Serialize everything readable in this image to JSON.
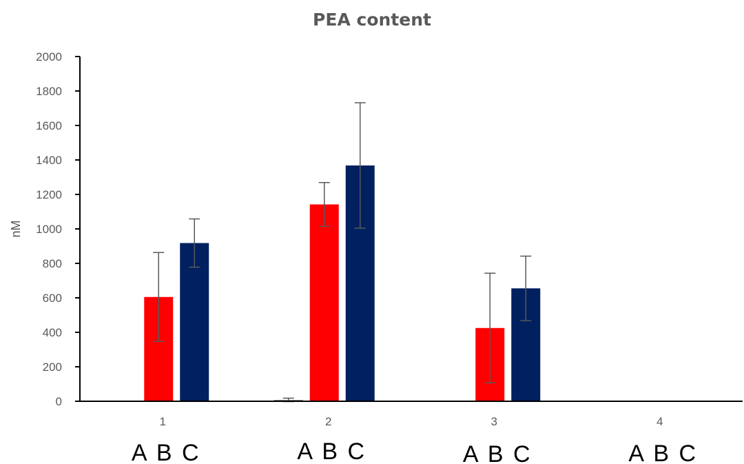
{
  "chart_data": {
    "type": "bar",
    "title": "PEA content",
    "xlabel": "",
    "ylabel": "nM",
    "ylim": [
      0,
      2000
    ],
    "y_ticks": [
      0,
      200,
      400,
      600,
      800,
      1000,
      1200,
      1400,
      1600,
      1800,
      2000
    ],
    "categories": [
      "1",
      "2",
      "3",
      "4"
    ],
    "group_labels": [
      "A",
      "B",
      "C"
    ],
    "series": [
      {
        "id": "A",
        "color": "#7f7f7f",
        "values": [
          2,
          8,
          2,
          0
        ],
        "errors": [
          0,
          10,
          0,
          0
        ]
      },
      {
        "id": "B",
        "color": "#ff0000",
        "values": [
          605,
          1142,
          425,
          0
        ],
        "errors": [
          258,
          127,
          318,
          0
        ]
      },
      {
        "id": "C",
        "color": "#002060",
        "values": [
          918,
          1368,
          655,
          0
        ],
        "errors": [
          140,
          364,
          187,
          0
        ]
      }
    ],
    "grid": false,
    "legend": "none"
  }
}
